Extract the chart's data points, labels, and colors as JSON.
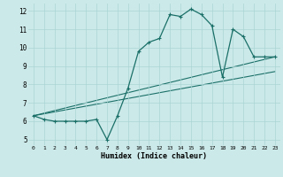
{
  "xlabel": "Humidex (Indice chaleur)",
  "xlim": [
    -0.5,
    23.5
  ],
  "ylim": [
    4.7,
    12.4
  ],
  "xticks": [
    0,
    1,
    2,
    3,
    4,
    5,
    6,
    7,
    8,
    9,
    10,
    11,
    12,
    13,
    14,
    15,
    16,
    17,
    18,
    19,
    20,
    21,
    22,
    23
  ],
  "yticks": [
    5,
    6,
    7,
    8,
    9,
    10,
    11,
    12
  ],
  "background_color": "#cce9e9",
  "line_color": "#1a7068",
  "grid_color": "#aad4d4",
  "line1_x": [
    0,
    1,
    2,
    3,
    4,
    5,
    6,
    7,
    8,
    9,
    10,
    11,
    12,
    13,
    14,
    15,
    16,
    17,
    18,
    19,
    20,
    21,
    22,
    23
  ],
  "line1_y": [
    6.3,
    6.1,
    6.0,
    6.0,
    6.0,
    6.0,
    6.1,
    5.0,
    6.3,
    7.8,
    9.8,
    10.3,
    10.5,
    11.8,
    11.7,
    12.1,
    11.8,
    11.2,
    8.4,
    11.0,
    10.6,
    9.5,
    9.5,
    9.5
  ],
  "line2_x": [
    0,
    23
  ],
  "line2_y": [
    6.3,
    9.5
  ],
  "line3_x": [
    0,
    23
  ],
  "line3_y": [
    6.3,
    8.7
  ]
}
